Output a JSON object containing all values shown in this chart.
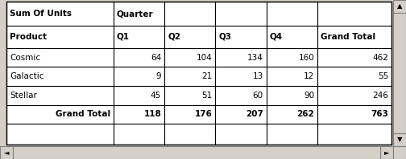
{
  "title_row": [
    "Sum Of Units",
    "Quarter",
    "",
    "",
    "",
    ""
  ],
  "header_row": [
    "Product",
    "Q1",
    "Q2",
    "Q3",
    "Q4",
    "Grand Total"
  ],
  "data_rows": [
    [
      "Cosmic",
      "64",
      "104",
      "134",
      "160",
      "462"
    ],
    [
      "Galactic",
      "9",
      "21",
      "13",
      "12",
      "55"
    ],
    [
      "Stellar",
      "45",
      "51",
      "60",
      "90",
      "246"
    ]
  ],
  "total_row": [
    "Grand Total",
    "118",
    "176",
    "207",
    "262",
    "763"
  ],
  "bg_outer": "#d4d0c8",
  "bg_table": "#ffffff",
  "scrollbar_color": "#d4d0c8",
  "scrollbar_border": "#808080",
  "border_color": "#000000",
  "font_size": 7.5,
  "fig_width": 5.04,
  "fig_height": 1.98,
  "dpi": 100
}
